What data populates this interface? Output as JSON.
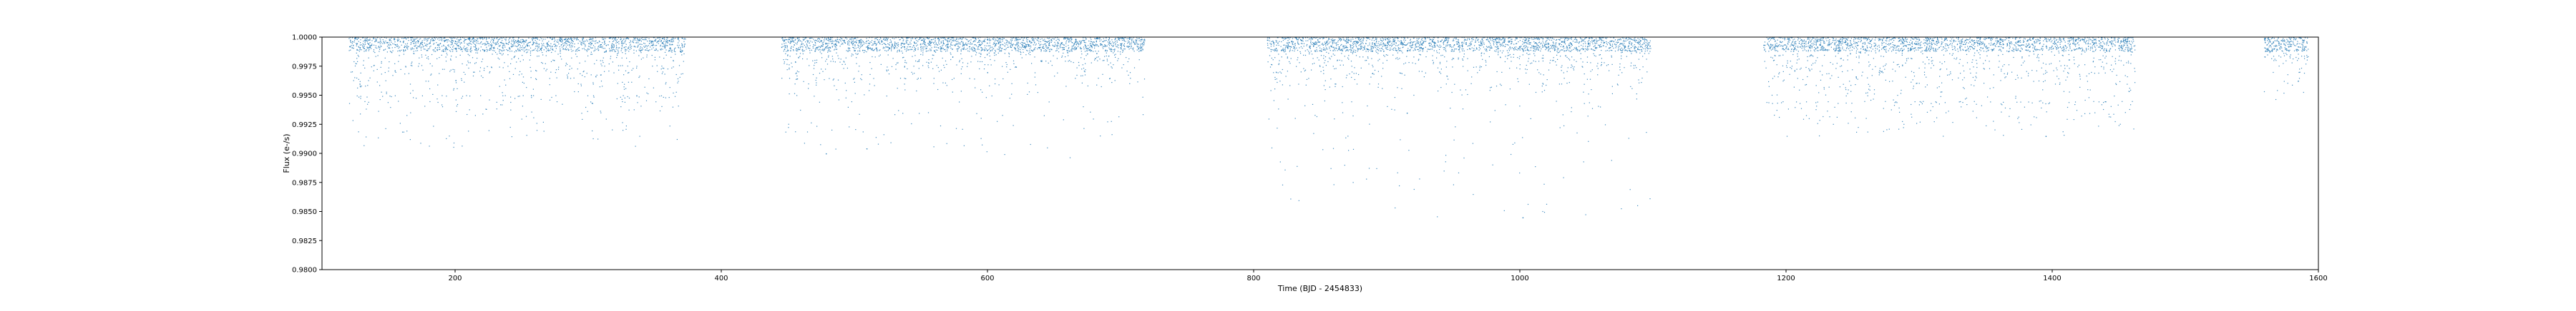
{
  "chart_data": {
    "type": "scatter",
    "title": "",
    "xlabel": "Time (BJD - 2454833)",
    "ylabel": "Flux (e-/s)",
    "xlim": [
      100,
      1600
    ],
    "ylim": [
      0.98,
      1.0
    ],
    "xticks": [
      200,
      400,
      600,
      800,
      1000,
      1200,
      1400,
      1600
    ],
    "yticks": [
      0.98,
      0.9825,
      0.985,
      0.9875,
      0.99,
      0.9925,
      0.995,
      0.9975,
      1.0
    ],
    "xtick_labels": [
      "200",
      "400",
      "600",
      "800",
      "1000",
      "1200",
      "1400",
      "1600"
    ],
    "ytick_labels": [
      "0.9800",
      "0.9825",
      "0.9850",
      "0.9875",
      "0.9900",
      "0.9925",
      "0.9950",
      "0.9975",
      "1.0000"
    ],
    "grid": false,
    "legend": false,
    "colors": {
      "points": "#1f77b4",
      "axes": "#000000"
    },
    "segments": [
      {
        "x": [
          120,
          373
        ],
        "typical_depth": 0.005,
        "max_depth": 0.0095
      },
      {
        "x": [
          445,
          718
        ],
        "typical_depth": 0.0035,
        "max_depth": 0.0105
      },
      {
        "x": [
          810,
          1098
        ],
        "typical_depth": 0.004,
        "max_depth": 0.0155
      },
      {
        "x": [
          1183,
          1462
        ],
        "typical_depth": 0.0055,
        "max_depth": 0.0085
      },
      {
        "x": [
          1559,
          1592
        ],
        "typical_depth": 0.003,
        "max_depth": 0.0055
      }
    ],
    "outliers": [
      {
        "x": 915,
        "y": 0.9935
      },
      {
        "x": 1002,
        "y": 0.9845
      },
      {
        "x": 1395,
        "y": 0.9915
      }
    ]
  }
}
